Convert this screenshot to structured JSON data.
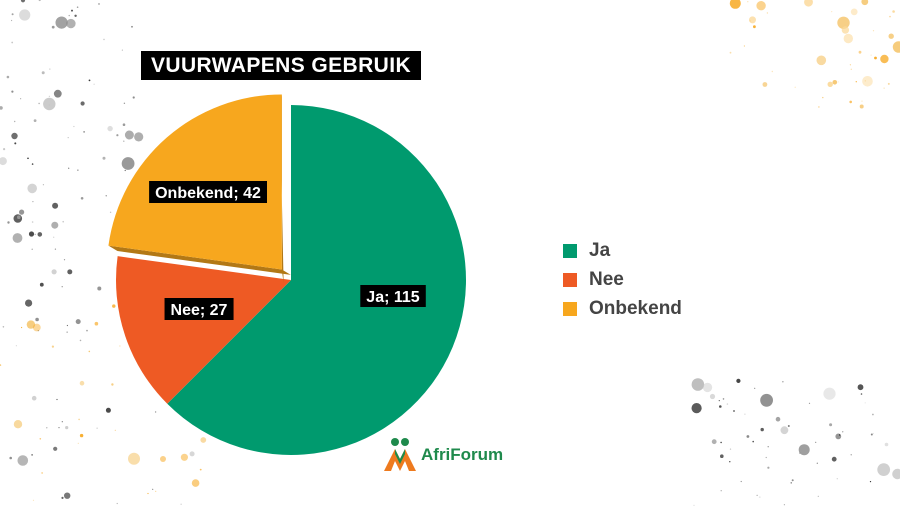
{
  "chart_data": {
    "type": "pie",
    "title": "VUURWAPENS GEBRUIK",
    "categories": [
      "Ja",
      "Nee",
      "Onbekend"
    ],
    "values": [
      115,
      27,
      42
    ],
    "data_labels": [
      "Ja; 115",
      "Nee; 27",
      "Onbekend; 42"
    ],
    "colors": [
      "#009A6E",
      "#EE5A24",
      "#F7A71E"
    ],
    "exploded": [
      "Onbekend"
    ],
    "style": "3d",
    "legend_position": "right"
  },
  "branding": {
    "logo_text": "AfriForum",
    "logo_colors": [
      "#EE7A1E",
      "#1F8A4C"
    ]
  }
}
